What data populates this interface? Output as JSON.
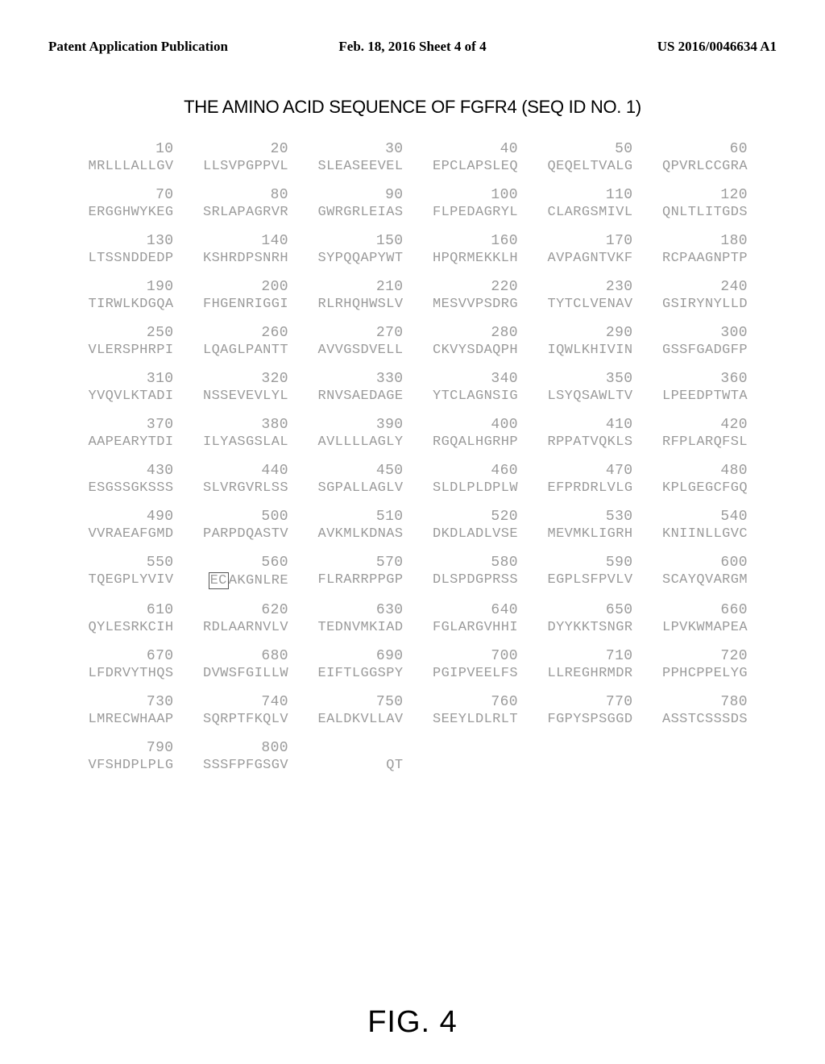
{
  "header": {
    "left": "Patent Application Publication",
    "center": "Feb. 18, 2016  Sheet 4 of 4",
    "right": "US 2016/0046634 A1"
  },
  "title": "THE AMINO ACID SEQUENCE OF FGFR4 (SEQ ID NO. 1)",
  "figure_label": "FIG. 4",
  "sequence": {
    "text_color": "#9b9b9b",
    "num_color": "#9b9b9b",
    "font_size": 17,
    "num_font_size": 18,
    "blocks": [
      {
        "nums": [
          "10",
          "20",
          "30",
          "40",
          "50",
          "60"
        ],
        "seq": [
          "MRLLLALLGV",
          "LLSVPGPPVL",
          "SLEASEEVEL",
          "EPCLAPSLEQ",
          "QEQELTVALG",
          "QPVRLCCGRA"
        ]
      },
      {
        "nums": [
          "70",
          "80",
          "90",
          "100",
          "110",
          "120"
        ],
        "seq": [
          "ERGGHWYKEG",
          "SRLAPAGRVR",
          "GWRGRLEIAS",
          "FLPEDAGRYL",
          "CLARGSMIVL",
          "QNLTLITGDS"
        ]
      },
      {
        "nums": [
          "130",
          "140",
          "150",
          "160",
          "170",
          "180"
        ],
        "seq": [
          "LTSSNDDEDP",
          "KSHRDPSNRH",
          "SYPQQAPYWT",
          "HPQRMEKKLH",
          "AVPAGNTVKF",
          "RCPAAGNPTP"
        ]
      },
      {
        "nums": [
          "190",
          "200",
          "210",
          "220",
          "230",
          "240"
        ],
        "seq": [
          "TIRWLKDGQA",
          "FHGENRIGGI",
          "RLRHQHWSLV",
          "MESVVPSDRG",
          "TYTCLVENAV",
          "GSIRYNYLLD"
        ]
      },
      {
        "nums": [
          "250",
          "260",
          "270",
          "280",
          "290",
          "300"
        ],
        "seq": [
          "VLERSPHRPI",
          "LQAGLPANTT",
          "AVVGSDVELL",
          "CKVYSDAQPH",
          "IQWLKHIVIN",
          "GSSFGADGFP"
        ]
      },
      {
        "nums": [
          "310",
          "320",
          "330",
          "340",
          "350",
          "360"
        ],
        "seq": [
          "YVQVLKTADI",
          "NSSEVEVLYL",
          "RNVSAEDAGE",
          "YTCLAGNSIG",
          "LSYQSAWLTV",
          "LPEEDPTWTA"
        ]
      },
      {
        "nums": [
          "370",
          "380",
          "390",
          "400",
          "410",
          "420"
        ],
        "seq": [
          "AAPEARYTDI",
          "ILYASGSLAL",
          "AVLLLLAGLY",
          "RGQALHGRHP",
          "RPPATVQKLS",
          "RFPLARQFSL"
        ]
      },
      {
        "nums": [
          "430",
          "440",
          "450",
          "460",
          "470",
          "480"
        ],
        "seq": [
          "ESGSSGKSSS",
          "SLVRGVRLSS",
          "SGPALLAGLV",
          "SLDLPLDPLW",
          "EFPRDRLVLG",
          "KPLGEGCFGQ"
        ]
      },
      {
        "nums": [
          "490",
          "500",
          "510",
          "520",
          "530",
          "540"
        ],
        "seq": [
          "VVRAEAFGMD",
          "PARPDQASTV",
          "AVKMLKDNAS",
          "DKDLADLVSE",
          "MEVMKLIGRH",
          "KNIINLLGVC"
        ]
      },
      {
        "nums": [
          "550",
          "560",
          "570",
          "580",
          "590",
          "600"
        ],
        "seq": [
          "TQEGPLYVIV",
          "__BOX__AKGNLRE",
          "FLRARRPPGP",
          "DLSPDGPRSS",
          "EGPLSFPVLV",
          "SCAYQVARGM"
        ],
        "box_index": 1,
        "box_text": "EC"
      },
      {
        "nums": [
          "610",
          "620",
          "630",
          "640",
          "650",
          "660"
        ],
        "seq": [
          "QYLESRKCIH",
          "RDLAARNVLV",
          "TEDNVMKIAD",
          "FGLARGVHHI",
          "DYYKKTSNGR",
          "LPVKWMAPEA"
        ]
      },
      {
        "nums": [
          "670",
          "680",
          "690",
          "700",
          "710",
          "720"
        ],
        "seq": [
          "LFDRVYTHQS",
          "DVWSFGILLW",
          "EIFTLGGSPY",
          "PGIPVEELFS",
          "LLREGHRMDR",
          "PPHCPPELYG"
        ]
      },
      {
        "nums": [
          "730",
          "740",
          "750",
          "760",
          "770",
          "780"
        ],
        "seq": [
          "LMRECWHAAP",
          "SQRPTFKQLV",
          "EALDKVLLAV",
          "SEEYLDLRLT",
          "FGPYSPSGGD",
          "ASSTCSSSDS"
        ]
      },
      {
        "nums": [
          "790",
          "800",
          "",
          "",
          "",
          ""
        ],
        "seq": [
          "VFSHDPLPLG",
          "SSSFPFGSGV",
          "QT",
          "",
          "",
          ""
        ]
      }
    ]
  }
}
